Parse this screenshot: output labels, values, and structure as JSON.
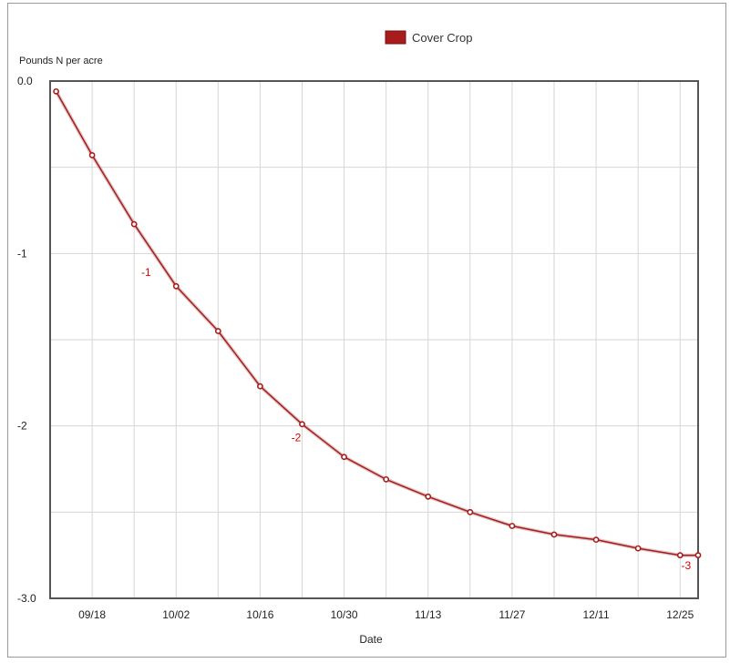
{
  "chart_data": {
    "type": "line",
    "ylabel": "Pounds N per acre",
    "xlabel": "Date",
    "legend": {
      "placement": "top-center",
      "entries": [
        "Cover Crop"
      ]
    },
    "grid": true,
    "xlim_days": [
      0,
      108
    ],
    "ylim": [
      -3.0,
      0.0
    ],
    "x_ticks": [
      "09/18",
      "10/02",
      "10/16",
      "10/30",
      "11/13",
      "11/27",
      "12/11",
      "12/25"
    ],
    "y_ticks": [
      "0.0",
      "-1",
      "-2",
      "-3.0"
    ],
    "series": [
      {
        "name": "Cover Crop",
        "color": "#a81c1c",
        "x": [
          1,
          7,
          14,
          21,
          28,
          35,
          42,
          49,
          56,
          63,
          70,
          77,
          84,
          91,
          98,
          105,
          108
        ],
        "y": [
          -0.06,
          -0.43,
          -0.83,
          -1.19,
          -1.45,
          -1.77,
          -1.99,
          -2.18,
          -2.31,
          -2.41,
          -2.5,
          -2.58,
          -2.63,
          -2.66,
          -2.71,
          -2.75,
          -2.75
        ]
      }
    ],
    "annotations": [
      {
        "text": "-1",
        "x": 16,
        "y": -1.13
      },
      {
        "text": "-2",
        "x": 41,
        "y": -2.09
      },
      {
        "text": "-3",
        "x": 106,
        "y": -2.83
      }
    ]
  }
}
